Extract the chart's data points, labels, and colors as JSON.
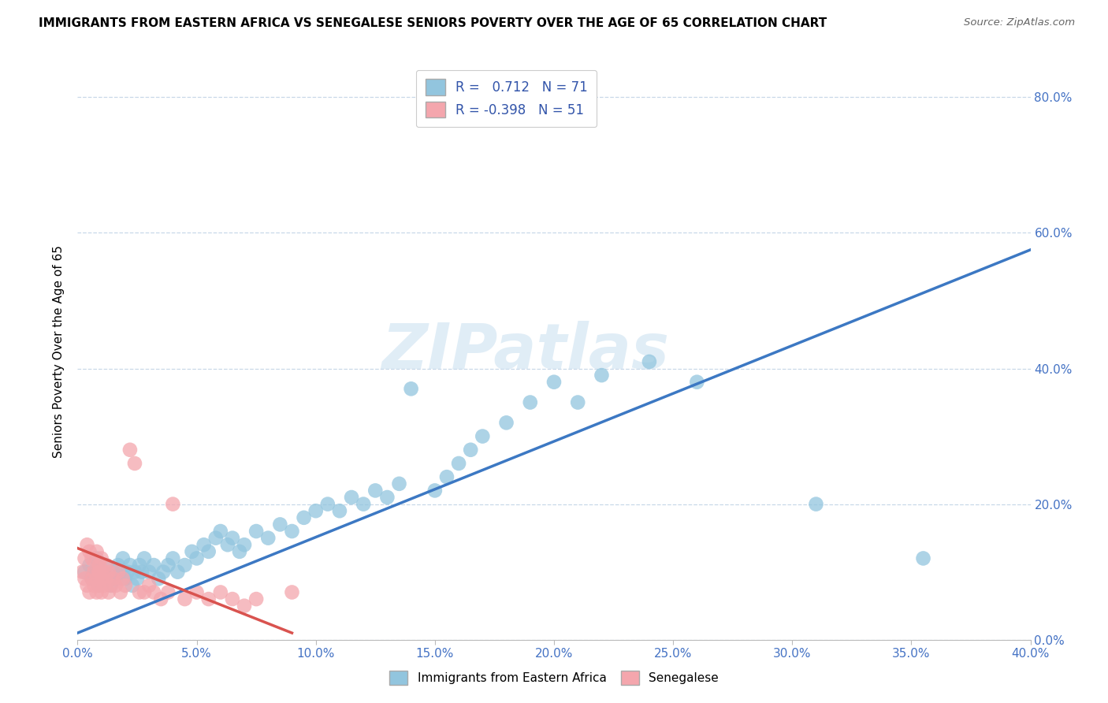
{
  "title": "IMMIGRANTS FROM EASTERN AFRICA VS SENEGALESE SENIORS POVERTY OVER THE AGE OF 65 CORRELATION CHART",
  "source": "Source: ZipAtlas.com",
  "ylabel": "Seniors Poverty Over the Age of 65",
  "xlim": [
    0.0,
    0.4
  ],
  "ylim": [
    0.0,
    0.85
  ],
  "ytick_values": [
    0.0,
    0.2,
    0.4,
    0.6,
    0.8
  ],
  "xtick_values": [
    0.0,
    0.05,
    0.1,
    0.15,
    0.2,
    0.25,
    0.3,
    0.35,
    0.4
  ],
  "legend_R_blue": "0.712",
  "legend_N_blue": "71",
  "legend_R_pink": "-0.398",
  "legend_N_pink": "51",
  "blue_color": "#92c5de",
  "pink_color": "#f4a6ad",
  "blue_line_color": "#3c78c3",
  "pink_line_color": "#d9534f",
  "watermark": "ZIPatlas",
  "blue_line_x0": 0.0,
  "blue_line_y0": 0.01,
  "blue_line_x1": 0.4,
  "blue_line_y1": 0.575,
  "pink_line_x0": 0.0,
  "pink_line_y0": 0.135,
  "pink_line_x1": 0.09,
  "pink_line_y1": 0.01,
  "blue_x": [
    0.003,
    0.005,
    0.006,
    0.007,
    0.008,
    0.009,
    0.01,
    0.011,
    0.012,
    0.013,
    0.014,
    0.015,
    0.016,
    0.017,
    0.018,
    0.019,
    0.02,
    0.021,
    0.022,
    0.023,
    0.024,
    0.025,
    0.026,
    0.027,
    0.028,
    0.03,
    0.032,
    0.034,
    0.036,
    0.038,
    0.04,
    0.042,
    0.045,
    0.048,
    0.05,
    0.053,
    0.055,
    0.058,
    0.06,
    0.063,
    0.065,
    0.068,
    0.07,
    0.075,
    0.08,
    0.085,
    0.09,
    0.095,
    0.1,
    0.105,
    0.11,
    0.115,
    0.12,
    0.125,
    0.13,
    0.135,
    0.14,
    0.15,
    0.155,
    0.16,
    0.165,
    0.17,
    0.18,
    0.19,
    0.2,
    0.21,
    0.22,
    0.24,
    0.26,
    0.31,
    0.355
  ],
  "blue_y": [
    0.1,
    0.11,
    0.09,
    0.1,
    0.12,
    0.08,
    0.09,
    0.1,
    0.11,
    0.09,
    0.08,
    0.1,
    0.09,
    0.11,
    0.1,
    0.12,
    0.09,
    0.1,
    0.11,
    0.08,
    0.1,
    0.09,
    0.11,
    0.1,
    0.12,
    0.1,
    0.11,
    0.09,
    0.1,
    0.11,
    0.12,
    0.1,
    0.11,
    0.13,
    0.12,
    0.14,
    0.13,
    0.15,
    0.16,
    0.14,
    0.15,
    0.13,
    0.14,
    0.16,
    0.15,
    0.17,
    0.16,
    0.18,
    0.19,
    0.2,
    0.19,
    0.21,
    0.2,
    0.22,
    0.21,
    0.23,
    0.37,
    0.22,
    0.24,
    0.26,
    0.28,
    0.3,
    0.32,
    0.35,
    0.38,
    0.35,
    0.39,
    0.41,
    0.38,
    0.2,
    0.12
  ],
  "pink_x": [
    0.002,
    0.003,
    0.003,
    0.004,
    0.004,
    0.005,
    0.005,
    0.006,
    0.006,
    0.007,
    0.007,
    0.007,
    0.008,
    0.008,
    0.008,
    0.009,
    0.009,
    0.009,
    0.01,
    0.01,
    0.01,
    0.011,
    0.011,
    0.012,
    0.012,
    0.013,
    0.013,
    0.014,
    0.015,
    0.016,
    0.017,
    0.018,
    0.019,
    0.02,
    0.022,
    0.024,
    0.026,
    0.028,
    0.03,
    0.032,
    0.035,
    0.038,
    0.04,
    0.045,
    0.05,
    0.055,
    0.06,
    0.065,
    0.07,
    0.075,
    0.09
  ],
  "pink_y": [
    0.1,
    0.12,
    0.09,
    0.14,
    0.08,
    0.13,
    0.07,
    0.12,
    0.09,
    0.11,
    0.1,
    0.08,
    0.09,
    0.13,
    0.07,
    0.1,
    0.11,
    0.08,
    0.12,
    0.09,
    0.07,
    0.1,
    0.08,
    0.11,
    0.09,
    0.1,
    0.07,
    0.08,
    0.09,
    0.08,
    0.1,
    0.07,
    0.09,
    0.08,
    0.28,
    0.26,
    0.07,
    0.07,
    0.08,
    0.07,
    0.06,
    0.07,
    0.2,
    0.06,
    0.07,
    0.06,
    0.07,
    0.06,
    0.05,
    0.06,
    0.07
  ]
}
